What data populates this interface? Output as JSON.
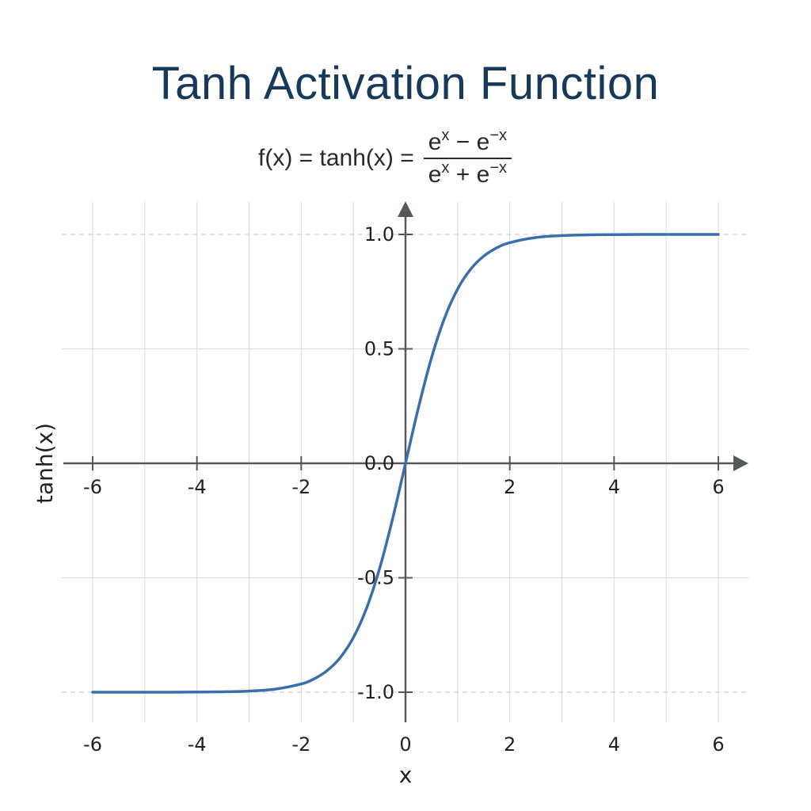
{
  "title": "Tanh Activation Function",
  "formula": {
    "lhs": "f(x) = tanh(x) =",
    "numerator_base1": "e",
    "numerator_exp1": "x",
    "numerator_op": " − ",
    "numerator_base2": "e",
    "numerator_exp2": "−x",
    "denominator_base1": "e",
    "denominator_exp1": "x",
    "denominator_op": " + ",
    "denominator_base2": "e",
    "denominator_exp2": "−x"
  },
  "chart_data": {
    "type": "line",
    "title": "Tanh Activation Function",
    "xlabel": "x",
    "ylabel": "tanh(x)",
    "xlim": [
      -6,
      6
    ],
    "ylim": [
      -1,
      1
    ],
    "x_ticks_axis": [
      "-6",
      "-4",
      "-2",
      "2",
      "4",
      "6"
    ],
    "x_ticks_bottom": [
      "-6",
      "-4",
      "-2",
      "0",
      "2",
      "4",
      "6"
    ],
    "y_ticks": [
      "1.0",
      "0.5",
      "0.0",
      "-0.5",
      "-1.0"
    ],
    "grid": true,
    "series": [
      {
        "color": "#3a6fac",
        "x": [
          -6,
          -5.5,
          -5,
          -4.5,
          -4,
          -3.5,
          -3,
          -2.5,
          -2,
          -1.75,
          -1.5,
          -1.25,
          -1,
          -0.75,
          -0.5,
          -0.25,
          0,
          0.25,
          0.5,
          0.75,
          1,
          1.25,
          1.5,
          1.75,
          2,
          2.5,
          3,
          3.5,
          4,
          4.5,
          5,
          5.5,
          6
        ],
        "y": [
          -1.0,
          -1.0,
          -0.9999,
          -0.9998,
          -0.9993,
          -0.9982,
          -0.9951,
          -0.9866,
          -0.964,
          -0.9414,
          -0.9051,
          -0.8483,
          -0.7616,
          -0.6351,
          -0.4621,
          -0.2449,
          0,
          0.2449,
          0.4621,
          0.6351,
          0.7616,
          0.8483,
          0.9051,
          0.9414,
          0.964,
          0.9866,
          0.9951,
          0.9982,
          0.9993,
          0.9998,
          0.9999,
          1.0,
          1.0
        ]
      }
    ]
  }
}
